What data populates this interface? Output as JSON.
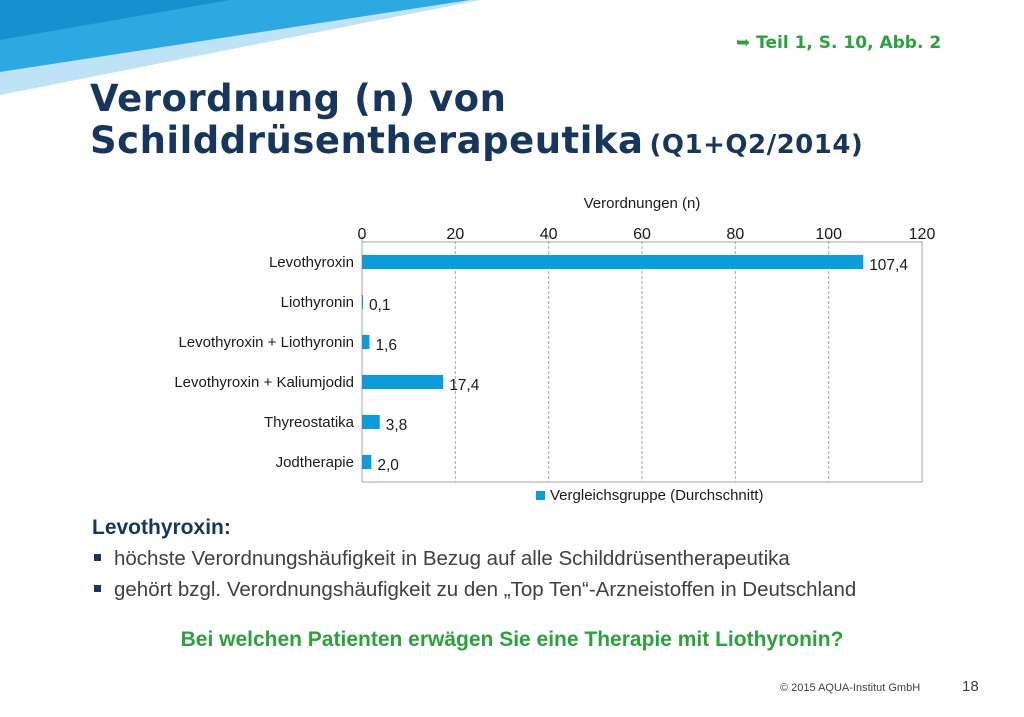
{
  "header": {
    "reference": "➥ Teil  1, S. 10, Abb. 2",
    "title_line1": "Verordnung (n) von",
    "title_line2": "Schilddrüsentherapeutika",
    "title_suffix": "(Q1+Q2/2014)"
  },
  "colors": {
    "title": "#17365d",
    "accent_green": "#2aa33c",
    "bar": "#0b9ddb",
    "deco_light": "#bfe3f6",
    "deco_dark": "#2ea8e0"
  },
  "chart_data": {
    "type": "bar",
    "orientation": "horizontal",
    "xlabel": "Verordnungen (n)",
    "xlim": [
      0,
      120
    ],
    "ticks": [
      "0",
      "20",
      "40",
      "60",
      "80",
      "100",
      "120"
    ],
    "tick_values": [
      0,
      20,
      40,
      60,
      80,
      100,
      120
    ],
    "axis_position": "top",
    "grid": true,
    "legend_position": "bottom",
    "categories": [
      "Levothyroxin",
      "Liothyronin",
      "Levothyroxin + Liothyronin",
      "Levothyroxin + Kaliumjodid",
      "Thyreostatika",
      "Jodtherapie"
    ],
    "series": [
      {
        "name": "Vergleichsgruppe (Durchschnitt)",
        "values": [
          107.4,
          0.1,
          1.6,
          17.4,
          3.8,
          2.0
        ],
        "labels": [
          "107,4",
          "0,1",
          "1,6",
          "17,4",
          "3,8",
          "2,0"
        ]
      }
    ]
  },
  "notes": {
    "heading": "Levothyroxin:",
    "bullets": [
      "höchste Verordnungshäufigkeit in Bezug auf alle Schilddrüsentherapeutika",
      "gehört bzgl. Verordnungshäufigkeit zu den „Top Ten“-Arzneistoffen in Deutschland"
    ]
  },
  "question": "Bei welchen Patienten erwägen Sie eine Therapie mit Liothyronin?",
  "footer": {
    "copyright": "© 2015 AQUA-Institut GmbH",
    "page_number": "18"
  }
}
